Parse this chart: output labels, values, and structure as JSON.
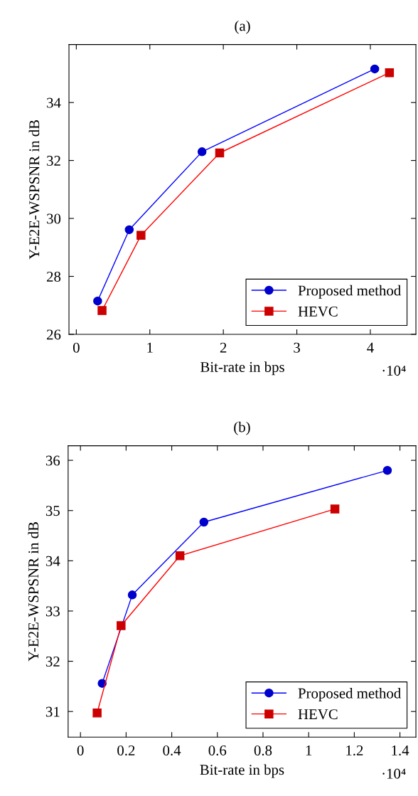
{
  "chart_data": [
    {
      "type": "line",
      "title": "(a)",
      "xlabel": "Bit-rate in bps",
      "ylabel": "Y-E2E-WSPSNR in dB",
      "annotations": [
        "·10⁴"
      ],
      "legend": "bottom right",
      "xlim": [
        -0.1,
        4.62
      ],
      "ylim": [
        26,
        36
      ],
      "xticks": [
        0,
        1,
        2,
        3,
        4
      ],
      "yticks": [
        26,
        28,
        30,
        32,
        34
      ],
      "series": [
        {
          "name": "Proposed method",
          "color": "#0000ff",
          "marker": "circle",
          "x": [
            0.29,
            0.72,
            1.71,
            4.06
          ],
          "values": [
            27.15,
            29.61,
            32.3,
            35.16
          ]
        },
        {
          "name": "HEVC",
          "color": "#ff0000",
          "marker": "square",
          "x": [
            0.35,
            0.88,
            1.95,
            4.26
          ],
          "values": [
            26.82,
            29.42,
            32.26,
            35.03
          ]
        }
      ]
    },
    {
      "type": "line",
      "title": "(b)",
      "xlabel": "Bit-rate in bps",
      "ylabel": "Y-E2E-WSPSNR in dB",
      "annotations": [
        "·10⁴"
      ],
      "legend": "bottom right",
      "xlim": [
        -0.054,
        1.47
      ],
      "ylim": [
        30.49,
        36.29
      ],
      "xticks": [
        0,
        0.2,
        0.4,
        0.6,
        0.8,
        1,
        1.2,
        1.4
      ],
      "yticks": [
        31,
        32,
        33,
        34,
        35,
        36
      ],
      "series": [
        {
          "name": "Proposed method",
          "color": "#0000ff",
          "marker": "circle",
          "x": [
            0.095,
            0.227,
            0.541,
            1.345
          ],
          "values": [
            31.56,
            33.32,
            34.77,
            35.8
          ]
        },
        {
          "name": "HEVC",
          "color": "#ff0000",
          "marker": "square",
          "x": [
            0.073,
            0.178,
            0.436,
            1.115
          ],
          "values": [
            30.97,
            32.71,
            34.1,
            35.03
          ]
        }
      ]
    }
  ]
}
